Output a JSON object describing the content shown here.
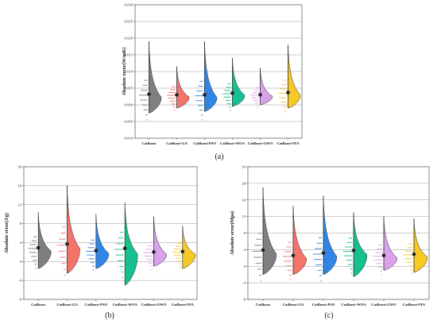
{
  "figure": {
    "panel_labels": [
      "(a)",
      "(b)",
      "(c)"
    ]
  },
  "colors": {
    "CatBoost": "#7f7f7f",
    "CatBoost-GA": "#f4736b",
    "CatBoost-PSO": "#2f86e6",
    "CatBoost-WOA": "#16c08f",
    "CatBoost-GWO": "#d9a2ea",
    "CatBoost-FFA": "#f7c924"
  },
  "chart_data": [
    {
      "type": "violin",
      "panel": "(a)",
      "ylabel": "Absolute error(W/mK)",
      "ylim": [
        -0.01,
        0.03
      ],
      "yticks": [
        "-0.010",
        "-0.005",
        "0.000",
        "0.005",
        "0.010",
        "0.015",
        "0.020",
        "0.025",
        "0.030"
      ],
      "ytick_values": [
        -0.01,
        -0.005,
        0.0,
        0.005,
        0.01,
        0.015,
        0.02,
        0.025,
        0.03
      ],
      "grid": true,
      "categories": [
        "CatBoost",
        "CatBoost-GA",
        "CatBoost-PSO",
        "CatBoost-WOA",
        "CatBoost-GWO",
        "CatBoost-FFA"
      ],
      "series": [
        {
          "name": "CatBoost",
          "mean": 0.0032,
          "min": -0.0025,
          "max": 0.019
        },
        {
          "name": "CatBoost-GA",
          "mean": 0.003,
          "min": -0.001,
          "max": 0.0115
        },
        {
          "name": "CatBoost-PSO",
          "mean": 0.003,
          "min": -0.002,
          "max": 0.019
        },
        {
          "name": "CatBoost-WOA",
          "mean": 0.0035,
          "min": -0.0005,
          "max": 0.014
        },
        {
          "name": "CatBoost-GWO",
          "mean": 0.003,
          "min": 0.0,
          "max": 0.011
        },
        {
          "name": "CatBoost-FFA",
          "mean": 0.0037,
          "min": -0.001,
          "max": 0.018
        }
      ]
    },
    {
      "type": "violin",
      "panel": "(b)",
      "ylabel": "Absolute error(J/g)",
      "ylim": [
        -8,
        20
      ],
      "yticks": [
        "-8",
        "-4",
        "0",
        "4",
        "8",
        "12",
        "16",
        "20"
      ],
      "ytick_values": [
        -8,
        -4,
        0,
        4,
        8,
        12,
        16,
        20
      ],
      "grid": true,
      "categories": [
        "CatBoost",
        "CatBoost-GA",
        "CatBoost-PSO",
        "CatBoost-WOA",
        "CatBoost-GWO",
        "CatBoost-FFA"
      ],
      "series": [
        {
          "name": "CatBoost",
          "mean": 2.9,
          "min": -1.5,
          "max": 10.5
        },
        {
          "name": "CatBoost-GA",
          "mean": 3.7,
          "min": -2.5,
          "max": 16.0
        },
        {
          "name": "CatBoost-PSO",
          "mean": 2.3,
          "min": -1.5,
          "max": 10.0
        },
        {
          "name": "CatBoost-WOA",
          "mean": 2.8,
          "min": -5.0,
          "max": 12.5
        },
        {
          "name": "CatBoost-GWO",
          "mean": 2.0,
          "min": -1.0,
          "max": 9.5
        },
        {
          "name": "CatBoost-FFA",
          "mean": 2.1,
          "min": -1.5,
          "max": 7.5
        }
      ]
    },
    {
      "type": "violin",
      "panel": "(c)",
      "ylabel": "Absolute error(Mpa)",
      "ylim": [
        -8,
        24
      ],
      "yticks": [
        "-8",
        "-4",
        "0",
        "4",
        "8",
        "12",
        "16",
        "20",
        "24"
      ],
      "ytick_values": [
        -8,
        -4,
        0,
        4,
        8,
        12,
        16,
        20,
        24
      ],
      "grid": true,
      "categories": [
        "CatBoost",
        "CatBoost-GA",
        "CatBoost-PSO",
        "CatBoost-WOA",
        "CatBoost-GWO",
        "CatBoost-FFA"
      ],
      "series": [
        {
          "name": "CatBoost",
          "mean": 3.9,
          "min": -2.0,
          "max": 19.0
        },
        {
          "name": "CatBoost-GA",
          "mean": 2.6,
          "min": -2.0,
          "max": 14.5
        },
        {
          "name": "CatBoost-PSO",
          "mean": 3.2,
          "min": -2.0,
          "max": 17.0
        },
        {
          "name": "CatBoost-WOA",
          "mean": 3.8,
          "min": -2.5,
          "max": 13.0
        },
        {
          "name": "CatBoost-GWO",
          "mean": 2.6,
          "min": -1.0,
          "max": 12.0
        },
        {
          "name": "CatBoost-FFA",
          "mean": 2.9,
          "min": -1.5,
          "max": 11.5
        }
      ]
    }
  ]
}
